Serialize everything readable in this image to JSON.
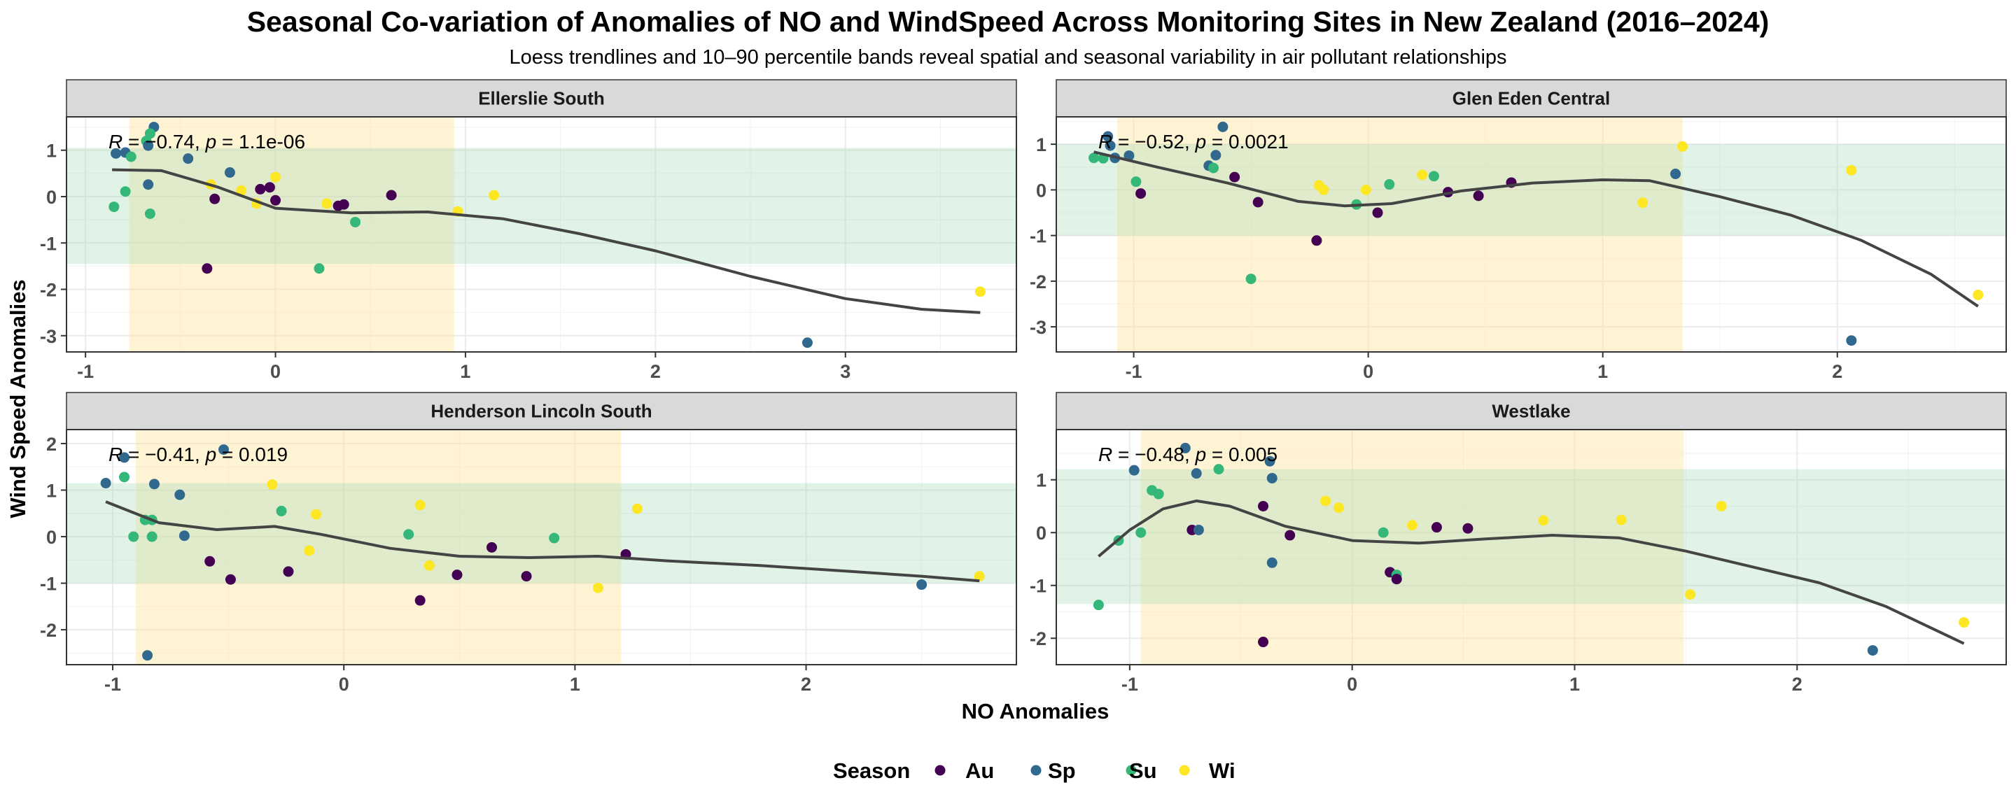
{
  "title": "Seasonal Co-variation of Anomalies of NO and WindSpeed Across Monitoring Sites in New Zealand (2016–2024)",
  "subtitle": "Loess trendlines and 10–90 percentile bands reveal spatial and seasonal variability in air pollutant relationships",
  "colors": {
    "Au": "#440154",
    "Sp": "#31688e",
    "Su": "#35b779",
    "Wi": "#fde725",
    "trend": "#444444",
    "x_band": "#fdf1c6",
    "y_band": "#dcefe3",
    "overlap_band": "#e8eed6",
    "strip": "#d9d9d9",
    "grid": "#ebebeb"
  },
  "chart_data": {
    "type": "scatter",
    "xlabel": "NO Anomalies",
    "ylabel": "Wind Speed Anomalies",
    "legend": {
      "title": "Season",
      "position": "bottom",
      "items": [
        "Au",
        "Sp",
        "Su",
        "Wi"
      ]
    },
    "grid": true,
    "facets": [
      {
        "name": "Ellerslie South",
        "stat": {
          "r_label": "R",
          "r": "−0.74",
          "p_label": "p",
          "p": "1.1e-06"
        },
        "xlim": [
          -1.1,
          3.9
        ],
        "ylim": [
          -3.35,
          1.72
        ],
        "xticks": [
          -1,
          0,
          1,
          2,
          3
        ],
        "yticks": [
          -3,
          -2,
          -1,
          0,
          1
        ],
        "x_band": [
          -0.77,
          0.94
        ],
        "y_band": [
          -1.45,
          1.05
        ],
        "points": [
          {
            "x": -0.84,
            "y": 0.93,
            "s": "Sp"
          },
          {
            "x": -0.79,
            "y": 0.95,
            "s": "Sp"
          },
          {
            "x": -0.76,
            "y": 0.86,
            "s": "Su"
          },
          {
            "x": -0.64,
            "y": 1.5,
            "s": "Sp"
          },
          {
            "x": -0.66,
            "y": 1.36,
            "s": "Su"
          },
          {
            "x": -0.68,
            "y": 1.2,
            "s": "Su"
          },
          {
            "x": -0.67,
            "y": 1.1,
            "s": "Sp"
          },
          {
            "x": -0.67,
            "y": 0.26,
            "s": "Sp"
          },
          {
            "x": -0.66,
            "y": -0.37,
            "s": "Su"
          },
          {
            "x": -0.85,
            "y": -0.22,
            "s": "Su"
          },
          {
            "x": -0.79,
            "y": 0.11,
            "s": "Su"
          },
          {
            "x": -0.46,
            "y": 0.82,
            "s": "Sp"
          },
          {
            "x": -0.24,
            "y": 0.52,
            "s": "Sp"
          },
          {
            "x": -0.34,
            "y": 0.26,
            "s": "Wi"
          },
          {
            "x": -0.32,
            "y": -0.05,
            "s": "Au"
          },
          {
            "x": -0.36,
            "y": -1.55,
            "s": "Au"
          },
          {
            "x": -0.18,
            "y": 0.13,
            "s": "Wi"
          },
          {
            "x": -0.1,
            "y": -0.15,
            "s": "Wi"
          },
          {
            "x": -0.08,
            "y": 0.16,
            "s": "Au"
          },
          {
            "x": -0.03,
            "y": 0.2,
            "s": "Au"
          },
          {
            "x": 0.0,
            "y": 0.42,
            "s": "Wi"
          },
          {
            "x": 0.0,
            "y": -0.08,
            "s": "Au"
          },
          {
            "x": 0.27,
            "y": -0.15,
            "s": "Wi"
          },
          {
            "x": 0.33,
            "y": -0.2,
            "s": "Au"
          },
          {
            "x": 0.36,
            "y": -0.17,
            "s": "Au"
          },
          {
            "x": 0.42,
            "y": -0.55,
            "s": "Su"
          },
          {
            "x": 0.23,
            "y": -1.55,
            "s": "Su"
          },
          {
            "x": 0.61,
            "y": 0.03,
            "s": "Au"
          },
          {
            "x": 0.96,
            "y": -0.32,
            "s": "Wi"
          },
          {
            "x": 1.15,
            "y": 0.03,
            "s": "Wi"
          },
          {
            "x": 2.8,
            "y": -3.15,
            "s": "Sp"
          },
          {
            "x": 3.71,
            "y": -2.05,
            "s": "Wi"
          }
        ],
        "trend": [
          {
            "x": -0.86,
            "y": 0.58
          },
          {
            "x": -0.6,
            "y": 0.56
          },
          {
            "x": -0.3,
            "y": 0.2
          },
          {
            "x": 0.0,
            "y": -0.25
          },
          {
            "x": 0.4,
            "y": -0.35
          },
          {
            "x": 0.8,
            "y": -0.33
          },
          {
            "x": 1.2,
            "y": -0.48
          },
          {
            "x": 1.6,
            "y": -0.8
          },
          {
            "x": 2.0,
            "y": -1.17
          },
          {
            "x": 2.5,
            "y": -1.72
          },
          {
            "x": 3.0,
            "y": -2.2
          },
          {
            "x": 3.4,
            "y": -2.43
          },
          {
            "x": 3.71,
            "y": -2.5
          }
        ]
      },
      {
        "name": "Glen Eden Central",
        "stat": {
          "r_label": "R",
          "r": "−0.52",
          "p_label": "p",
          "p": "0.0021"
        },
        "xlim": [
          -1.33,
          2.72
        ],
        "ylim": [
          -3.55,
          1.6
        ],
        "xticks": [
          -1,
          0,
          1,
          2
        ],
        "yticks": [
          -3,
          -2,
          -1,
          0,
          1
        ],
        "x_band": [
          -1.07,
          1.34
        ],
        "y_band": [
          -1.0,
          1.0
        ],
        "points": [
          {
            "x": -1.17,
            "y": 0.7,
            "s": "Su"
          },
          {
            "x": -1.11,
            "y": 1.17,
            "s": "Sp"
          },
          {
            "x": -1.1,
            "y": 0.97,
            "s": "Sp"
          },
          {
            "x": -1.08,
            "y": 0.7,
            "s": "Sp"
          },
          {
            "x": -1.02,
            "y": 0.75,
            "s": "Sp"
          },
          {
            "x": -1.13,
            "y": 0.69,
            "s": "Su"
          },
          {
            "x": -0.99,
            "y": 0.18,
            "s": "Su"
          },
          {
            "x": -0.97,
            "y": -0.08,
            "s": "Au"
          },
          {
            "x": -0.62,
            "y": 1.38,
            "s": "Sp"
          },
          {
            "x": -0.65,
            "y": 0.76,
            "s": "Sp"
          },
          {
            "x": -0.68,
            "y": 0.53,
            "s": "Sp"
          },
          {
            "x": -0.66,
            "y": 0.48,
            "s": "Su"
          },
          {
            "x": -0.57,
            "y": 0.28,
            "s": "Au"
          },
          {
            "x": -0.47,
            "y": -0.27,
            "s": "Au"
          },
          {
            "x": -0.5,
            "y": -1.95,
            "s": "Su"
          },
          {
            "x": -0.21,
            "y": 0.1,
            "s": "Wi"
          },
          {
            "x": -0.19,
            "y": 0.0,
            "s": "Wi"
          },
          {
            "x": -0.22,
            "y": -1.11,
            "s": "Au"
          },
          {
            "x": -0.05,
            "y": -0.32,
            "s": "Su"
          },
          {
            "x": -0.01,
            "y": 0.0,
            "s": "Wi"
          },
          {
            "x": 0.04,
            "y": -0.5,
            "s": "Au"
          },
          {
            "x": 0.09,
            "y": 0.12,
            "s": "Su"
          },
          {
            "x": 0.23,
            "y": 0.33,
            "s": "Wi"
          },
          {
            "x": 0.28,
            "y": 0.3,
            "s": "Su"
          },
          {
            "x": 0.34,
            "y": -0.05,
            "s": "Au"
          },
          {
            "x": 0.47,
            "y": -0.13,
            "s": "Au"
          },
          {
            "x": 0.61,
            "y": 0.16,
            "s": "Au"
          },
          {
            "x": 1.17,
            "y": -0.28,
            "s": "Wi"
          },
          {
            "x": 1.31,
            "y": 0.35,
            "s": "Sp"
          },
          {
            "x": 1.34,
            "y": 0.95,
            "s": "Wi"
          },
          {
            "x": 2.06,
            "y": 0.43,
            "s": "Wi"
          },
          {
            "x": 2.06,
            "y": -3.3,
            "s": "Sp"
          },
          {
            "x": 2.6,
            "y": -2.3,
            "s": "Wi"
          }
        ],
        "trend": [
          {
            "x": -1.17,
            "y": 0.83
          },
          {
            "x": -0.9,
            "y": 0.5
          },
          {
            "x": -0.6,
            "y": 0.15
          },
          {
            "x": -0.3,
            "y": -0.25
          },
          {
            "x": -0.1,
            "y": -0.35
          },
          {
            "x": 0.1,
            "y": -0.3
          },
          {
            "x": 0.4,
            "y": -0.02
          },
          {
            "x": 0.7,
            "y": 0.15
          },
          {
            "x": 1.0,
            "y": 0.22
          },
          {
            "x": 1.2,
            "y": 0.2
          },
          {
            "x": 1.5,
            "y": -0.15
          },
          {
            "x": 1.8,
            "y": -0.55
          },
          {
            "x": 2.1,
            "y": -1.1
          },
          {
            "x": 2.4,
            "y": -1.85
          },
          {
            "x": 2.6,
            "y": -2.55
          }
        ]
      },
      {
        "name": "Henderson Lincoln South",
        "stat": {
          "r_label": "R",
          "r": "−0.41",
          "p_label": "p",
          "p": "0.019"
        },
        "xlim": [
          -1.2,
          2.91
        ],
        "ylim": [
          -2.75,
          2.3
        ],
        "xticks": [
          -1,
          0,
          1,
          2
        ],
        "yticks": [
          -2,
          -1,
          0,
          1,
          2
        ],
        "x_band": [
          -0.9,
          1.2
        ],
        "y_band": [
          -1.0,
          1.15
        ],
        "points": [
          {
            "x": -1.03,
            "y": 1.15,
            "s": "Sp"
          },
          {
            "x": -0.95,
            "y": 1.7,
            "s": "Sp"
          },
          {
            "x": -0.95,
            "y": 1.28,
            "s": "Su"
          },
          {
            "x": -0.91,
            "y": 0.0,
            "s": "Su"
          },
          {
            "x": -0.86,
            "y": 0.36,
            "s": "Su"
          },
          {
            "x": -0.83,
            "y": 0.36,
            "s": "Su"
          },
          {
            "x": -0.83,
            "y": 0.0,
            "s": "Su"
          },
          {
            "x": -0.82,
            "y": 1.13,
            "s": "Sp"
          },
          {
            "x": -0.85,
            "y": -2.55,
            "s": "Sp"
          },
          {
            "x": -0.71,
            "y": 0.9,
            "s": "Sp"
          },
          {
            "x": -0.69,
            "y": 0.02,
            "s": "Sp"
          },
          {
            "x": -0.58,
            "y": -0.53,
            "s": "Au"
          },
          {
            "x": -0.52,
            "y": 1.87,
            "s": "Sp"
          },
          {
            "x": -0.49,
            "y": -0.92,
            "s": "Au"
          },
          {
            "x": -0.31,
            "y": 1.12,
            "s": "Wi"
          },
          {
            "x": -0.27,
            "y": 0.55,
            "s": "Su"
          },
          {
            "x": -0.24,
            "y": -0.75,
            "s": "Au"
          },
          {
            "x": -0.15,
            "y": -0.3,
            "s": "Wi"
          },
          {
            "x": -0.12,
            "y": 0.48,
            "s": "Wi"
          },
          {
            "x": 0.28,
            "y": 0.05,
            "s": "Su"
          },
          {
            "x": 0.33,
            "y": 0.68,
            "s": "Wi"
          },
          {
            "x": 0.33,
            "y": -1.37,
            "s": "Au"
          },
          {
            "x": 0.37,
            "y": -0.62,
            "s": "Wi"
          },
          {
            "x": 0.49,
            "y": -0.82,
            "s": "Au"
          },
          {
            "x": 0.64,
            "y": -0.23,
            "s": "Au"
          },
          {
            "x": 0.79,
            "y": -0.85,
            "s": "Au"
          },
          {
            "x": 0.91,
            "y": -0.03,
            "s": "Su"
          },
          {
            "x": 1.1,
            "y": -1.1,
            "s": "Wi"
          },
          {
            "x": 1.22,
            "y": -0.38,
            "s": "Au"
          },
          {
            "x": 1.27,
            "y": 0.6,
            "s": "Wi"
          },
          {
            "x": 2.5,
            "y": -1.03,
            "s": "Sp"
          },
          {
            "x": 2.75,
            "y": -0.85,
            "s": "Wi"
          }
        ],
        "trend": [
          {
            "x": -1.03,
            "y": 0.75
          },
          {
            "x": -0.8,
            "y": 0.3
          },
          {
            "x": -0.55,
            "y": 0.15
          },
          {
            "x": -0.3,
            "y": 0.22
          },
          {
            "x": -0.1,
            "y": 0.05
          },
          {
            "x": 0.2,
            "y": -0.25
          },
          {
            "x": 0.5,
            "y": -0.42
          },
          {
            "x": 0.8,
            "y": -0.45
          },
          {
            "x": 1.1,
            "y": -0.42
          },
          {
            "x": 1.4,
            "y": -0.52
          },
          {
            "x": 1.8,
            "y": -0.62
          },
          {
            "x": 2.2,
            "y": -0.75
          },
          {
            "x": 2.5,
            "y": -0.85
          },
          {
            "x": 2.75,
            "y": -0.95
          }
        ]
      },
      {
        "name": "Westlake",
        "stat": {
          "r_label": "R",
          "r": "−0.48",
          "p_label": "p",
          "p": "0.005"
        },
        "xlim": [
          -1.33,
          2.94
        ],
        "ylim": [
          -2.5,
          1.95
        ],
        "xticks": [
          -1,
          0,
          1,
          2
        ],
        "yticks": [
          -2,
          -1,
          0,
          1
        ],
        "x_band": [
          -0.95,
          1.49
        ],
        "y_band": [
          -1.35,
          1.2
        ],
        "points": [
          {
            "x": -1.14,
            "y": -1.37,
            "s": "Su"
          },
          {
            "x": -1.05,
            "y": -0.15,
            "s": "Su"
          },
          {
            "x": -0.98,
            "y": 1.18,
            "s": "Sp"
          },
          {
            "x": -0.95,
            "y": 0.0,
            "s": "Su"
          },
          {
            "x": -0.9,
            "y": 0.8,
            "s": "Su"
          },
          {
            "x": -0.87,
            "y": 0.73,
            "s": "Su"
          },
          {
            "x": -0.75,
            "y": 1.6,
            "s": "Sp"
          },
          {
            "x": -0.72,
            "y": 0.05,
            "s": "Au"
          },
          {
            "x": -0.7,
            "y": 1.12,
            "s": "Sp"
          },
          {
            "x": -0.69,
            "y": 0.05,
            "s": "Sp"
          },
          {
            "x": -0.6,
            "y": 1.2,
            "s": "Su"
          },
          {
            "x": -0.4,
            "y": 0.5,
            "s": "Au"
          },
          {
            "x": -0.4,
            "y": -2.07,
            "s": "Au"
          },
          {
            "x": -0.37,
            "y": 1.35,
            "s": "Sp"
          },
          {
            "x": -0.36,
            "y": 1.03,
            "s": "Sp"
          },
          {
            "x": -0.36,
            "y": -0.57,
            "s": "Sp"
          },
          {
            "x": -0.28,
            "y": -0.05,
            "s": "Au"
          },
          {
            "x": -0.12,
            "y": 0.6,
            "s": "Wi"
          },
          {
            "x": -0.06,
            "y": 0.47,
            "s": "Wi"
          },
          {
            "x": 0.14,
            "y": 0.0,
            "s": "Su"
          },
          {
            "x": 0.17,
            "y": -0.75,
            "s": "Au"
          },
          {
            "x": 0.2,
            "y": -0.8,
            "s": "Su"
          },
          {
            "x": 0.2,
            "y": -0.88,
            "s": "Au"
          },
          {
            "x": 0.27,
            "y": 0.14,
            "s": "Wi"
          },
          {
            "x": 0.38,
            "y": 0.1,
            "s": "Au"
          },
          {
            "x": 0.52,
            "y": 0.08,
            "s": "Au"
          },
          {
            "x": 0.86,
            "y": 0.23,
            "s": "Wi"
          },
          {
            "x": 1.21,
            "y": 0.24,
            "s": "Wi"
          },
          {
            "x": 1.52,
            "y": -1.17,
            "s": "Wi"
          },
          {
            "x": 1.66,
            "y": 0.5,
            "s": "Wi"
          },
          {
            "x": 2.34,
            "y": -2.23,
            "s": "Sp"
          },
          {
            "x": 2.75,
            "y": -1.7,
            "s": "Wi"
          }
        ],
        "trend": [
          {
            "x": -1.14,
            "y": -0.45
          },
          {
            "x": -1.0,
            "y": 0.05
          },
          {
            "x": -0.85,
            "y": 0.45
          },
          {
            "x": -0.7,
            "y": 0.6
          },
          {
            "x": -0.55,
            "y": 0.5
          },
          {
            "x": -0.3,
            "y": 0.12
          },
          {
            "x": 0.0,
            "y": -0.15
          },
          {
            "x": 0.3,
            "y": -0.2
          },
          {
            "x": 0.6,
            "y": -0.12
          },
          {
            "x": 0.9,
            "y": -0.05
          },
          {
            "x": 1.2,
            "y": -0.1
          },
          {
            "x": 1.5,
            "y": -0.35
          },
          {
            "x": 1.8,
            "y": -0.65
          },
          {
            "x": 2.1,
            "y": -0.95
          },
          {
            "x": 2.4,
            "y": -1.4
          },
          {
            "x": 2.75,
            "y": -2.1
          }
        ]
      }
    ]
  }
}
